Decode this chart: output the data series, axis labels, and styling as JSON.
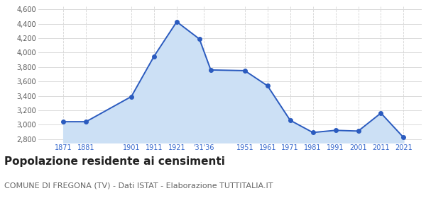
{
  "years": [
    1871,
    1881,
    1901,
    1911,
    1921,
    1931,
    1936,
    1951,
    1961,
    1971,
    1981,
    1991,
    2001,
    2011,
    2021
  ],
  "population": [
    3040,
    3040,
    3390,
    3950,
    4430,
    4190,
    3760,
    3750,
    3540,
    3060,
    2890,
    2920,
    2910,
    3160,
    2820
  ],
  "x_tick_labels": [
    "1871",
    "1881",
    "1901",
    "1911",
    "1921",
    "'31'36",
    "1951",
    "1961",
    "1971",
    "1981",
    "1991",
    "2001",
    "2011",
    "2021"
  ],
  "x_tick_positions": [
    1871,
    1881,
    1901,
    1911,
    1921,
    1933,
    1951,
    1961,
    1971,
    1981,
    1991,
    2001,
    2011,
    2021
  ],
  "ylim": [
    2750,
    4650
  ],
  "xlim": [
    1860,
    2029
  ],
  "yticks": [
    2800,
    3000,
    3200,
    3400,
    3600,
    3800,
    4000,
    4200,
    4400,
    4600
  ],
  "line_color": "#2b5bbf",
  "fill_color": "#cce0f5",
  "marker_color": "#2b5bbf",
  "grid_color": "#d5d5d5",
  "background_color": "#ffffff",
  "tick_label_color": "#3366cc",
  "ytick_label_color": "#555555",
  "title": "Popolazione residente ai censimenti",
  "subtitle": "COMUNE DI FREGONA (TV) - Dati ISTAT - Elaborazione TUTTITALIA.IT",
  "title_fontsize": 11,
  "subtitle_fontsize": 8
}
